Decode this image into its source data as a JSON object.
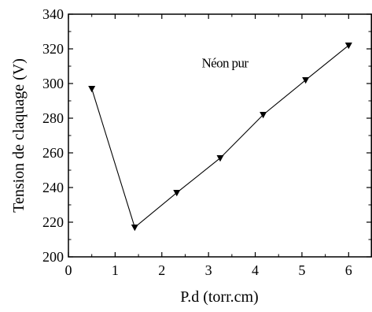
{
  "chart_data": {
    "type": "line",
    "title": "",
    "xlabel": "P.d (torr.cm)",
    "ylabel": "Tension de claquage (V)",
    "xlim": [
      0,
      6.5
    ],
    "ylim": [
      200,
      340
    ],
    "x_major_ticks": [
      0,
      1,
      2,
      3,
      4,
      5,
      6
    ],
    "x_tick_labels": [
      "0",
      "1",
      "2",
      "3",
      "4",
      "5",
      "6"
    ],
    "y_major_ticks": [
      200,
      220,
      240,
      260,
      280,
      300,
      320,
      340
    ],
    "y_tick_labels": [
      "200",
      "220",
      "240",
      "260",
      "280",
      "300",
      "320",
      "340"
    ],
    "grid": false,
    "legend": "none",
    "annotations": [
      {
        "text": "Néon pur",
        "x": 3.35,
        "y": 312
      }
    ],
    "series": [
      {
        "marker": "triangle-down",
        "color": "#000000",
        "x": [
          0.5,
          1.42,
          2.32,
          3.25,
          4.17,
          5.08,
          6.0
        ],
        "y": [
          297,
          217,
          237,
          257,
          282,
          302,
          322
        ]
      }
    ]
  }
}
